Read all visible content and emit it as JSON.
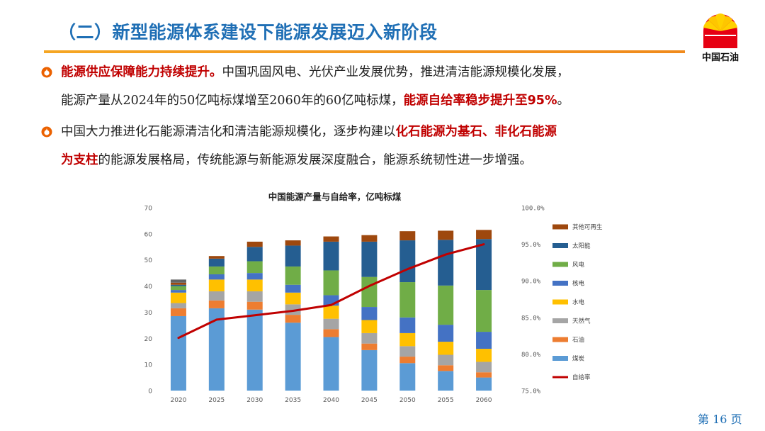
{
  "header": {
    "title": "（二）新型能源体系建设下能源发展迈入新阶段",
    "logo_text": "中国石油"
  },
  "bullets": [
    {
      "line1": [
        {
          "text": "能源供应保障能力持续提升。",
          "highlight": true
        },
        {
          "text": "中国巩固风电、光伏产业发展优势，推进清洁能源规模化发展，",
          "highlight": false
        }
      ],
      "line2": [
        {
          "text": "能源产量从2024年的50亿吨标煤增至2060年的60亿吨标煤，",
          "highlight": false
        },
        {
          "text": "能源自给率稳步提升至95%",
          "highlight": true
        },
        {
          "text": "。",
          "highlight": false
        }
      ]
    },
    {
      "line1": [
        {
          "text": "中国大力推进化石能源清洁化和清洁能源规模化，逐步构建以",
          "highlight": false
        },
        {
          "text": "化石能源为基石、非化石能源",
          "highlight": true
        }
      ],
      "line2": [
        {
          "text": "为支柱",
          "highlight": true
        },
        {
          "text": "的能源发展格局，传统能源与新能源发展深度融合，能源系统韧性进一步增强。",
          "highlight": false
        }
      ]
    }
  ],
  "page": {
    "label_pre": "第",
    "number": "16",
    "label_post": "页"
  },
  "colors": {
    "title": "#1F6FB5",
    "accent_bar": "#F5A623",
    "highlight": "#C00000",
    "logo_red": "#E60012",
    "logo_yellow": "#FFD100"
  },
  "chart_data": {
    "type": "bar",
    "stacked": true,
    "title": "中国能源产量与自给率，亿吨标煤",
    "categories": [
      "2020",
      "2025",
      "2030",
      "2035",
      "2040",
      "2045",
      "2050",
      "2055",
      "2060"
    ],
    "yticks_left": [
      "0",
      "10",
      "20",
      "30",
      "40",
      "50",
      "60",
      "70"
    ],
    "ylim_left": [
      0,
      70
    ],
    "yticks_right": [
      "75.0%",
      "80.0%",
      "85.0%",
      "90.0%",
      "95.0%",
      "100.0%"
    ],
    "ylim_right": [
      75,
      100
    ],
    "grid": false,
    "legend_position": "right",
    "series": [
      {
        "name": "煤炭",
        "color": "#5B9BD5",
        "values": [
          28.5,
          31.5,
          31,
          26,
          20.5,
          15.5,
          10.5,
          7.5,
          5
        ]
      },
      {
        "name": "石油",
        "color": "#ED7D31",
        "values": [
          3,
          3,
          3,
          3,
          3,
          2.5,
          2.5,
          2.2,
          2
        ]
      },
      {
        "name": "天然气",
        "color": "#A5A5A5",
        "values": [
          2,
          3.5,
          4,
          4,
          4,
          4,
          4,
          4,
          4
        ]
      },
      {
        "name": "水电",
        "color": "#FFC000",
        "values": [
          4,
          4.5,
          4.5,
          4.5,
          5,
          5,
          5,
          5,
          5
        ]
      },
      {
        "name": "核电",
        "color": "#4472C4",
        "values": [
          1,
          2,
          2.5,
          3,
          4,
          5,
          6,
          6.5,
          6.5
        ]
      },
      {
        "name": "风电",
        "color": "#70AD47",
        "values": [
          1.5,
          3,
          4.5,
          7,
          9.5,
          11.5,
          13.5,
          15,
          16
        ]
      },
      {
        "name": "太阳能",
        "color": "#255E91",
        "values": [
          0.5,
          3,
          5.5,
          8,
          11,
          13.5,
          16,
          17.5,
          19.5
        ]
      },
      {
        "name": "其他可再生",
        "color": "#9E480E",
        "values": [
          0.8,
          1,
          2,
          2,
          2,
          2.5,
          3.5,
          3.5,
          3.5
        ]
      }
    ],
    "line_series": {
      "name": "自给率",
      "color": "#C00000",
      "axis": "right",
      "values": [
        82.2,
        84.7,
        85.3,
        85.9,
        86.7,
        89.3,
        91.6,
        93.6,
        95.0
      ]
    },
    "extra_segment": {
      "category": "2020",
      "color": "#636363",
      "value": 1.2
    }
  }
}
